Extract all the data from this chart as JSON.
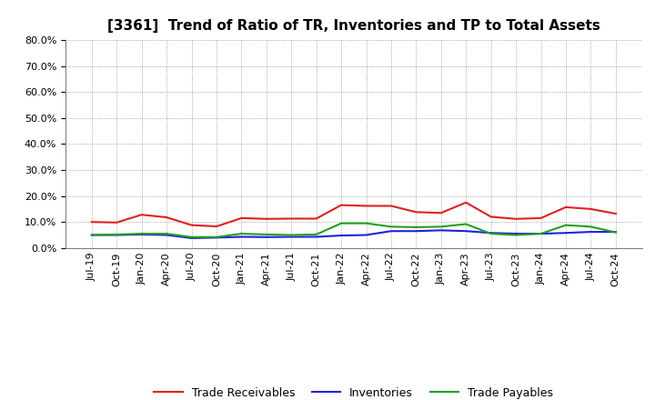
{
  "title": "[3361]  Trend of Ratio of TR, Inventories and TP to Total Assets",
  "x_labels": [
    "Jul-19",
    "Oct-19",
    "Jan-20",
    "Apr-20",
    "Jul-20",
    "Oct-20",
    "Jan-21",
    "Apr-21",
    "Jul-21",
    "Oct-21",
    "Jan-22",
    "Apr-22",
    "Jul-22",
    "Oct-22",
    "Jan-23",
    "Apr-23",
    "Jul-23",
    "Oct-23",
    "Jan-24",
    "Apr-24",
    "Jul-24",
    "Oct-24"
  ],
  "trade_receivables": [
    0.1,
    0.098,
    0.128,
    0.118,
    0.088,
    0.083,
    0.115,
    0.112,
    0.113,
    0.113,
    0.165,
    0.162,
    0.162,
    0.138,
    0.135,
    0.175,
    0.12,
    0.112,
    0.115,
    0.157,
    0.15,
    0.132
  ],
  "inventories": [
    0.05,
    0.05,
    0.052,
    0.05,
    0.038,
    0.04,
    0.043,
    0.042,
    0.043,
    0.043,
    0.048,
    0.05,
    0.065,
    0.065,
    0.068,
    0.065,
    0.058,
    0.055,
    0.055,
    0.058,
    0.062,
    0.062
  ],
  "trade_payables": [
    0.05,
    0.052,
    0.055,
    0.055,
    0.042,
    0.042,
    0.055,
    0.052,
    0.05,
    0.052,
    0.095,
    0.095,
    0.082,
    0.08,
    0.082,
    0.092,
    0.055,
    0.05,
    0.055,
    0.088,
    0.082,
    0.06
  ],
  "tr_color": "#e02020",
  "inv_color": "#2020e0",
  "tp_color": "#20a020",
  "ylim": [
    0.0,
    0.8
  ],
  "yticks": [
    0.0,
    0.1,
    0.2,
    0.3,
    0.4,
    0.5,
    0.6,
    0.7,
    0.8
  ],
  "background_color": "#ffffff",
  "plot_bg_color": "#ffffff",
  "legend_labels": [
    "Trade Receivables",
    "Inventories",
    "Trade Payables"
  ],
  "title_fontsize": 11,
  "tick_fontsize": 8,
  "linewidth": 1.5
}
